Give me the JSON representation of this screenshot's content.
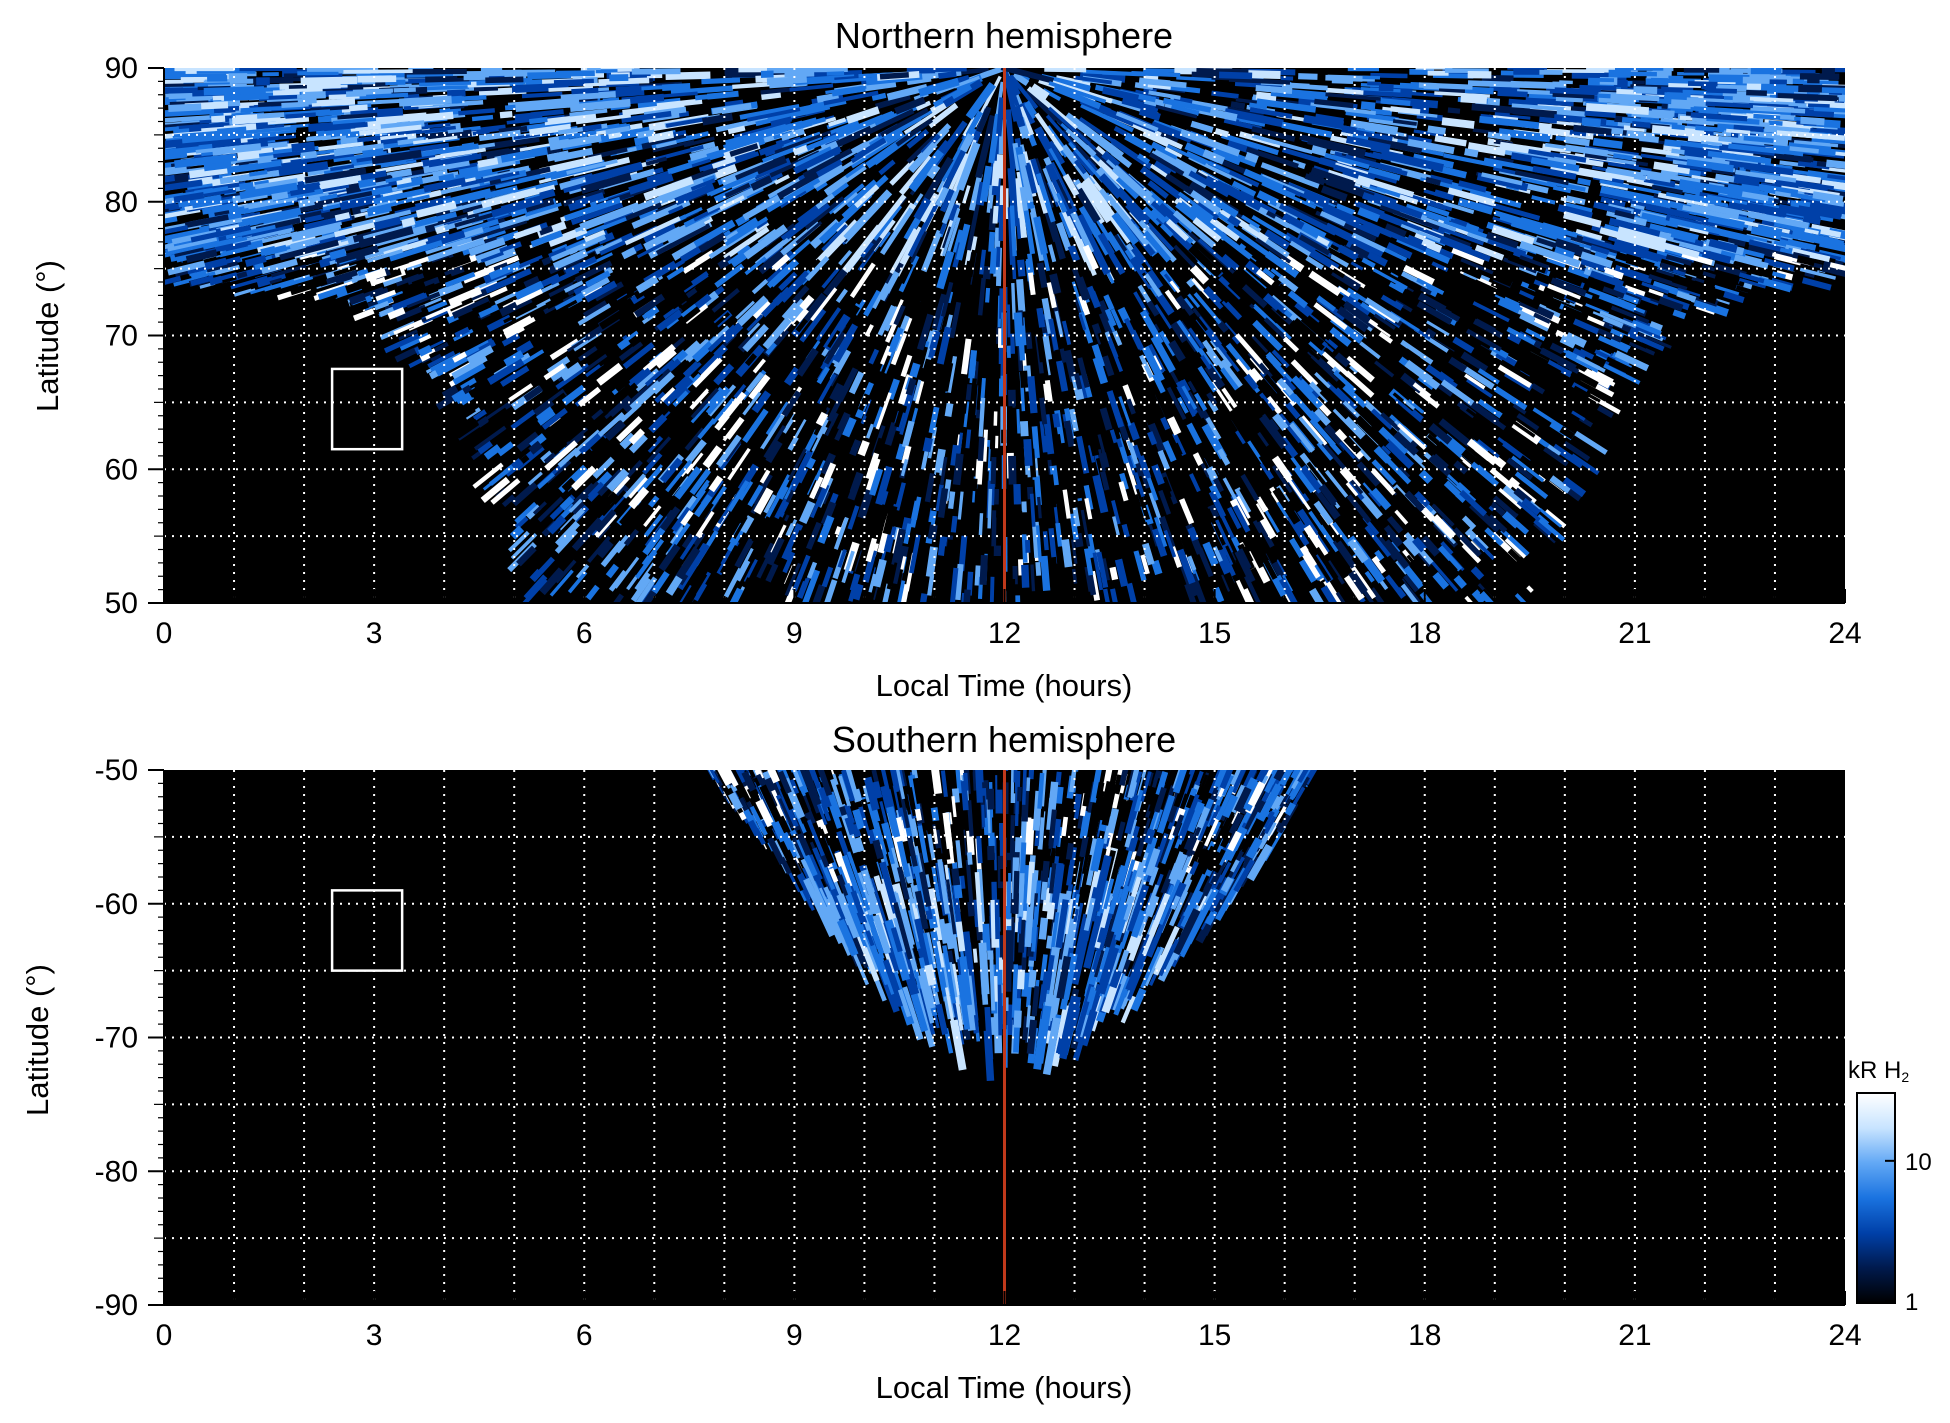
{
  "chart_data": [
    {
      "type": "heatmap",
      "title": "Northern hemisphere",
      "xlabel": "Local Time (hours)",
      "ylabel": "Latitude (°)",
      "xlim": [
        0,
        24
      ],
      "ylim": [
        50,
        90
      ],
      "xticks": [
        0,
        3,
        6,
        9,
        12,
        15,
        18,
        21,
        24
      ],
      "yticks": [
        50,
        60,
        70,
        80,
        90
      ],
      "grid": true,
      "grid_y": [
        55,
        60,
        65,
        70,
        75,
        80,
        85
      ],
      "background_color": "#000000",
      "reference_line": {
        "x": 12,
        "color": "#c0391b"
      },
      "box": {
        "x": [
          2.4,
          3.4
        ],
        "y": [
          61.5,
          67.5
        ]
      },
      "coverage_boundary_lat_by_lt": [
        [
          0,
          74
        ],
        [
          1,
          73.5
        ],
        [
          2,
          73
        ],
        [
          3,
          71
        ],
        [
          4,
          66
        ],
        [
          4.5,
          60
        ],
        [
          5,
          55
        ],
        [
          5.3,
          50
        ],
        [
          19.5,
          50
        ],
        [
          19.8,
          55
        ],
        [
          20.3,
          60
        ],
        [
          20.8,
          66
        ],
        [
          21.6,
          71
        ],
        [
          22.5,
          73
        ],
        [
          24,
          74
        ]
      ]
    },
    {
      "type": "heatmap",
      "title": "Southern hemisphere",
      "xlabel": "Local Time (hours)",
      "ylabel": "Latitude (°)",
      "xlim": [
        0,
        24
      ],
      "ylim": [
        -90,
        -50
      ],
      "xticks": [
        0,
        3,
        6,
        9,
        12,
        15,
        18,
        21,
        24
      ],
      "yticks": [
        -50,
        -60,
        -70,
        -80,
        -90
      ],
      "yticklabels": [
        "-50",
        "-60",
        "-70",
        "-80",
        "-90"
      ],
      "grid": true,
      "grid_y": [
        -55,
        -60,
        -65,
        -70,
        -75,
        -80,
        -85
      ],
      "background_color": "#000000",
      "reference_line": {
        "x": 12,
        "color": "#c0391b"
      },
      "box": {
        "x": [
          2.4,
          3.4
        ],
        "y": [
          -65,
          -59
        ]
      },
      "coverage_boundary_lat_by_lt": [
        [
          7.8,
          -50
        ],
        [
          8.2,
          -53
        ],
        [
          9,
          -58
        ],
        [
          10,
          -65
        ],
        [
          11,
          -70
        ],
        [
          12,
          -72
        ],
        [
          13,
          -71
        ],
        [
          14,
          -67
        ],
        [
          15,
          -61
        ],
        [
          15.8,
          -56
        ],
        [
          16.4,
          -50
        ]
      ]
    }
  ],
  "colorbar": {
    "label_main": "kR H",
    "label_sub": "2",
    "scale": "log",
    "range": [
      1,
      30
    ],
    "ticks": [
      1,
      10
    ],
    "ticklabels": [
      "1",
      "10"
    ],
    "colors": [
      "#000000",
      "#001a4d",
      "#0040a8",
      "#1a73e0",
      "#62a8f5",
      "#c8e4ff",
      "#ffffff"
    ]
  }
}
